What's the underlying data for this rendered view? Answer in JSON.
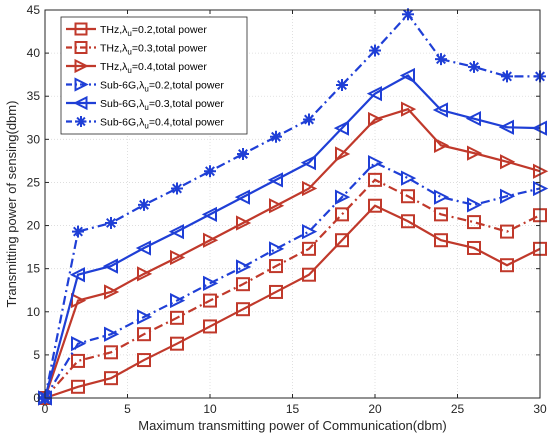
{
  "chart_data": {
    "type": "line",
    "xlabel": "Maximum transmitting power of Communication(dbm)",
    "ylabel": "Transmitting power of sensing(dbm)",
    "xlim": [
      0,
      30
    ],
    "ylim": [
      0,
      45
    ],
    "xticks": [
      0,
      5,
      10,
      15,
      20,
      25,
      30
    ],
    "yticks": [
      0,
      5,
      10,
      15,
      20,
      25,
      30,
      35,
      40,
      45
    ],
    "grid": true,
    "legend_position": "top-left",
    "x": [
      0,
      2,
      4,
      6,
      8,
      10,
      12,
      14,
      16,
      18,
      20,
      22,
      24,
      26,
      28,
      30
    ],
    "series": [
      {
        "name": "THz,λu=0.2,total power",
        "legend_base": "THz,λ",
        "legend_sub": "u",
        "legend_rest": "=0.2,total power",
        "color": "#c0392b",
        "dash": "solid",
        "marker": "square",
        "values": [
          0,
          1.3,
          2.3,
          4.4,
          6.3,
          8.3,
          10.3,
          12.3,
          14.3,
          18.3,
          22.3,
          20.5,
          18.3,
          17.4,
          15.4,
          17.3
        ]
      },
      {
        "name": "THz,λu=0.3,total power",
        "legend_base": "THz,λ",
        "legend_sub": "u",
        "legend_rest": "=0.3,total power",
        "color": "#c0392b",
        "dash": "dashdot",
        "marker": "square",
        "values": [
          0,
          4.3,
          5.3,
          7.4,
          9.3,
          11.3,
          13.2,
          15.3,
          17.3,
          21.3,
          25.3,
          23.4,
          21.3,
          20.4,
          19.3,
          21.2
        ]
      },
      {
        "name": "THz,λu=0.4,total power",
        "legend_base": "THz,λ",
        "legend_sub": "u",
        "legend_rest": "=0.4,total power",
        "color": "#c0392b",
        "dash": "solid",
        "marker": "triangle-right",
        "values": [
          0,
          11.3,
          12.3,
          14.4,
          16.3,
          18.3,
          20.3,
          22.3,
          24.3,
          28.3,
          32.3,
          33.5,
          29.3,
          28.4,
          27.4,
          26.3
        ]
      },
      {
        "name": "Sub-6G,λu=0.2,total power",
        "legend_base": "Sub-6G,λ",
        "legend_sub": "u",
        "legend_rest": "=0.2,total power",
        "color": "#1f3fd6",
        "dash": "dashdot",
        "marker": "triangle-right",
        "values": [
          0,
          6.3,
          7.4,
          9.4,
          11.3,
          13.3,
          15.2,
          17.3,
          19.3,
          23.3,
          27.3,
          25.5,
          23.3,
          22.4,
          23.4,
          24.3
        ]
      },
      {
        "name": "Sub-6G,λu=0.3,total power",
        "legend_base": "Sub-6G,λ",
        "legend_sub": "u",
        "legend_rest": "=0.3,total power",
        "color": "#1f3fd6",
        "dash": "solid",
        "marker": "triangle-left",
        "values": [
          0,
          14.3,
          15.3,
          17.4,
          19.3,
          21.3,
          23.3,
          25.3,
          27.3,
          31.3,
          35.3,
          37.4,
          33.4,
          32.4,
          31.4,
          31.3
        ]
      },
      {
        "name": "Sub-6G,λu=0.4,total power",
        "legend_base": "Sub-6G,λ",
        "legend_sub": "u",
        "legend_rest": "=0.4,total power",
        "color": "#1f3fd6",
        "dash": "dashdot",
        "marker": "asterisk",
        "values": [
          0,
          19.3,
          20.3,
          22.4,
          24.3,
          26.3,
          28.3,
          30.3,
          32.3,
          36.3,
          40.3,
          44.5,
          39.3,
          38.4,
          37.3,
          37.3
        ]
      }
    ]
  }
}
